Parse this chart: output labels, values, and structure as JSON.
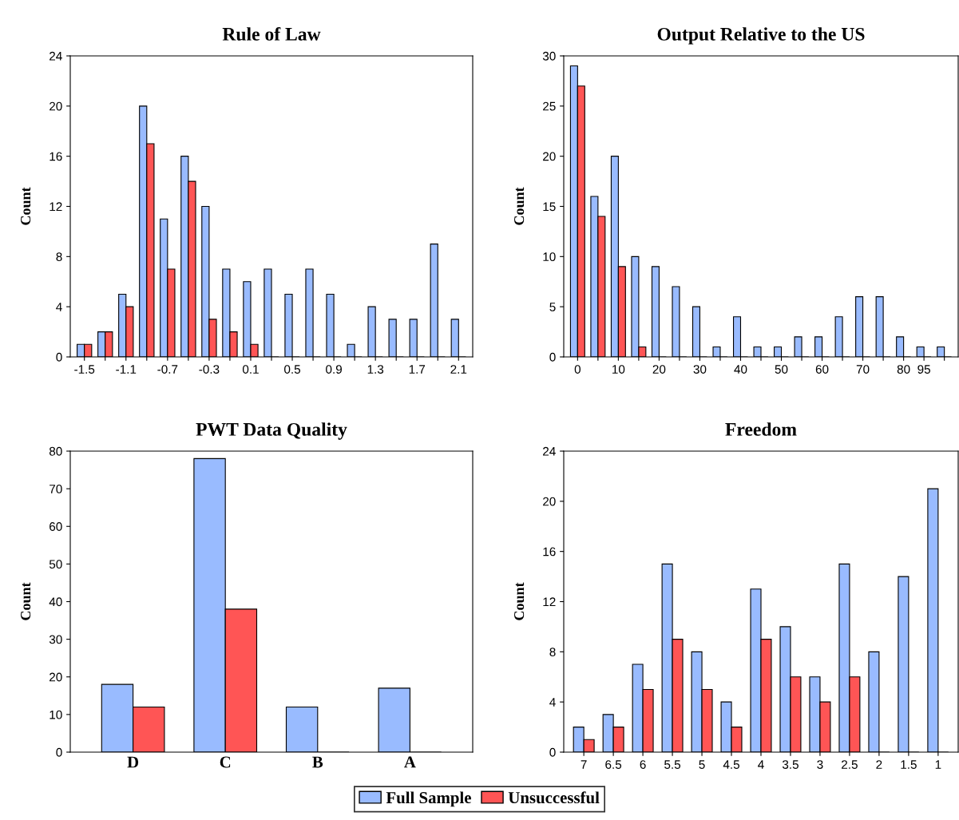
{
  "chart_data": [
    {
      "type": "bar",
      "title": "Rule of Law",
      "ylabel": "Count",
      "categories": [
        "-1.5",
        null,
        "-1.1",
        null,
        "-0.7",
        null,
        "-0.3",
        null,
        "0.1",
        null,
        "0.5",
        null,
        "0.9",
        null,
        "1.3",
        null,
        "1.7",
        null,
        "2.1"
      ],
      "ylim": [
        0,
        24
      ],
      "yticks": [
        0,
        4,
        8,
        12,
        16,
        20,
        24
      ],
      "legend": "bottom",
      "series": [
        {
          "name": "Full Sample",
          "color": "#99bbff",
          "values": [
            1,
            2,
            5,
            20,
            11,
            16,
            12,
            7,
            6,
            7,
            5,
            7,
            5,
            1,
            4,
            3,
            3,
            9,
            3
          ]
        },
        {
          "name": "Unsuccessful",
          "color": "#ff5555",
          "values": [
            1,
            2,
            4,
            17,
            7,
            14,
            3,
            2,
            1,
            0,
            0,
            0,
            0,
            0,
            0,
            0,
            0,
            0,
            0
          ]
        }
      ]
    },
    {
      "type": "bar",
      "title": "Output Relative to the US",
      "ylabel": "Count",
      "categories": [
        "0",
        null,
        "10",
        null,
        "20",
        null,
        "30",
        null,
        "40",
        null,
        "50",
        null,
        "60",
        null,
        "70",
        null,
        "80",
        "95",
        null
      ],
      "ylim": [
        0,
        30
      ],
      "yticks": [
        0,
        5,
        10,
        15,
        20,
        25,
        30
      ],
      "legend": "bottom",
      "series": [
        {
          "name": "Full Sample",
          "color": "#99bbff",
          "values": [
            29,
            16,
            20,
            10,
            9,
            7,
            5,
            1,
            4,
            1,
            1,
            2,
            2,
            4,
            6,
            6,
            2,
            1,
            1
          ]
        },
        {
          "name": "Unsuccessful",
          "color": "#ff5555",
          "values": [
            27,
            14,
            9,
            1,
            0,
            0,
            0,
            0,
            0,
            0,
            0,
            0,
            0,
            0,
            0,
            0,
            0,
            0,
            0
          ]
        }
      ]
    },
    {
      "type": "bar",
      "title": "PWT Data Quality",
      "ylabel": "Count",
      "categories": [
        "D",
        "C",
        "B",
        "A"
      ],
      "ylim": [
        0,
        80
      ],
      "yticks": [
        0,
        10,
        20,
        30,
        40,
        50,
        60,
        70,
        80
      ],
      "legend": "bottom",
      "series": [
        {
          "name": "Full Sample",
          "color": "#99bbff",
          "values": [
            18,
            78,
            12,
            17
          ]
        },
        {
          "name": "Unsuccessful",
          "color": "#ff5555",
          "values": [
            12,
            38,
            0,
            0
          ]
        }
      ]
    },
    {
      "type": "bar",
      "title": "Freedom",
      "ylabel": "Count",
      "categories": [
        "7",
        "6.5",
        "6",
        "5.5",
        "5",
        "4.5",
        "4",
        "3.5",
        "3",
        "2.5",
        "2",
        "1.5",
        "1"
      ],
      "ylim": [
        0,
        24
      ],
      "yticks": [
        0,
        4,
        8,
        12,
        16,
        20,
        24
      ],
      "legend": "bottom",
      "series": [
        {
          "name": "Full Sample",
          "color": "#99bbff",
          "values": [
            2,
            3,
            7,
            15,
            8,
            4,
            13,
            10,
            6,
            15,
            8,
            14,
            21
          ]
        },
        {
          "name": "Unsuccessful",
          "color": "#ff5555",
          "values": [
            1,
            2,
            5,
            9,
            5,
            2,
            9,
            6,
            4,
            6,
            0,
            0,
            0
          ]
        }
      ]
    }
  ]
}
